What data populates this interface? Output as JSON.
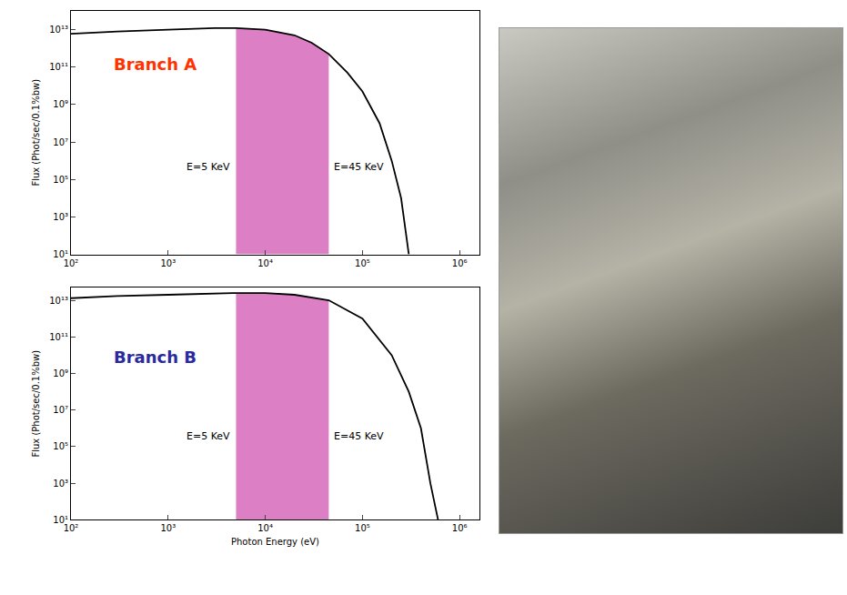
{
  "chart_data": [
    {
      "type": "line",
      "log": true,
      "grid": false,
      "label": {
        "text": "Branch A",
        "color": "#ff3300"
      },
      "y_label": "Flux (Phot/sec/0.1%bw)",
      "x": [
        100,
        300,
        1000,
        3000,
        5000,
        10000,
        20000,
        30000,
        45000,
        70000,
        100000,
        150000,
        200000,
        250000,
        300000
      ],
      "values": [
        6000000000000.0,
        8000000000000.0,
        10000000000000.0,
        12000000000000.0,
        12000000000000.0,
        10000000000000.0,
        5000000000000.0,
        2000000000000.0,
        500000000000.0,
        50000000000.0,
        5000000000.0,
        100000000.0,
        1000000.0,
        10000.0,
        10
      ],
      "color": "#000000",
      "band": {
        "x": [
          5000,
          45000
        ],
        "labels": [
          "E=5 KeV",
          "E=45 KeV"
        ],
        "color": "#dc7fc4"
      },
      "xlim": [
        100,
        1600000
      ],
      "xticks": [
        {
          "value": 100,
          "label": "10²"
        },
        {
          "value": 1000,
          "label": "10³"
        },
        {
          "value": 10000,
          "label": "10⁴"
        },
        {
          "value": 100000,
          "label": "10⁵"
        },
        {
          "value": 1000000,
          "label": "10⁶"
        }
      ],
      "ylim": [
        10,
        100000000000000.0
      ],
      "yticks": [
        {
          "value": 10,
          "label": "10¹"
        },
        {
          "value": 1000,
          "label": "10³"
        },
        {
          "value": 100000,
          "label": "10⁵"
        },
        {
          "value": 10000000,
          "label": "10⁷"
        },
        {
          "value": 1000000000,
          "label": "10⁹"
        },
        {
          "value": 100000000000,
          "label": "10¹¹"
        },
        {
          "value": 10000000000000,
          "label": "10¹³"
        }
      ]
    },
    {
      "type": "line",
      "log": true,
      "grid": false,
      "label": {
        "text": "Branch B",
        "color": "#2a2aa0"
      },
      "y_label": "Flux (Phot/sec/0.1%bw)",
      "x_label": "Photon Energy (eV)",
      "x": [
        100,
        300,
        1000,
        5000,
        10000,
        20000,
        45000,
        100000,
        200000,
        300000,
        400000,
        500000,
        600000
      ],
      "values": [
        13000000000000.0,
        17000000000000.0,
        20000000000000.0,
        25000000000000.0,
        25000000000000.0,
        20000000000000.0,
        10000000000000.0,
        1000000000000.0,
        10000000000.0,
        100000000.0,
        1000000.0,
        1000.0,
        10
      ],
      "color": "#000000",
      "band": {
        "x": [
          5000,
          45000
        ],
        "labels": [
          "E=5 KeV",
          "E=45 KeV"
        ],
        "color": "#dc7fc4"
      },
      "xlim": [
        100,
        1600000
      ],
      "xticks": [
        {
          "value": 100,
          "label": "10²"
        },
        {
          "value": 1000,
          "label": "10³"
        },
        {
          "value": 10000,
          "label": "10⁴"
        },
        {
          "value": 100000,
          "label": "10⁵"
        },
        {
          "value": 1000000,
          "label": "10⁶"
        }
      ],
      "ylim": [
        10,
        50000000000000.0
      ],
      "yticks": [
        {
          "value": 10,
          "label": "10¹"
        },
        {
          "value": 1000,
          "label": "10³"
        },
        {
          "value": 100000,
          "label": "10⁵"
        },
        {
          "value": 10000000,
          "label": "10⁷"
        },
        {
          "value": 1000000000,
          "label": "10⁹"
        },
        {
          "value": 100000000000,
          "label": "10¹¹"
        },
        {
          "value": 10000000000000,
          "label": "10¹³"
        }
      ]
    }
  ]
}
